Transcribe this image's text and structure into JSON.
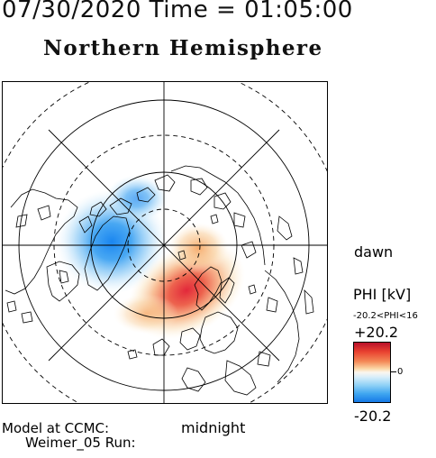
{
  "header": {
    "datetime": "07/30/2020 Time = 01:05:00",
    "hemisphere": "Northern Hemisphere"
  },
  "map": {
    "dawn_label": "dawn",
    "midnight_label": "midnight",
    "colors": {
      "positive": "#e3242b",
      "negative": "#1f8ff0",
      "neutral": "#ffffff"
    }
  },
  "legend": {
    "title": "PHI [kV]",
    "range_text": "-20.2<PHI<16",
    "max_label": "+20.2",
    "mid_label": "0",
    "min_label": "-20.2"
  },
  "footer": {
    "model_text": "Model at CCMC:",
    "run_text": "Weimer_05 Run:"
  }
}
